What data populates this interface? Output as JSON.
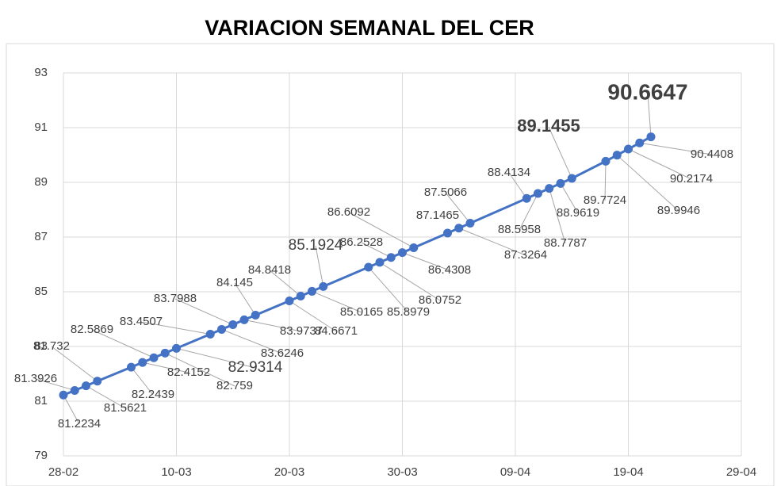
{
  "chart_data": {
    "type": "line",
    "title": "VARIACION SEMANAL DEL CER",
    "x": [
      "28-02",
      "01-03",
      "02-03",
      "03-03",
      "06-03",
      "07-03",
      "08-03",
      "09-03",
      "10-03",
      "13-03",
      "14-03",
      "15-03",
      "16-03",
      "17-03",
      "20-03",
      "21-03",
      "22-03",
      "23-03",
      "27-03",
      "28-03",
      "29-03",
      "30-03",
      "31-03",
      "03-04",
      "04-04",
      "05-04",
      "10-04",
      "11-04",
      "12-04",
      "13-04",
      "14-04",
      "17-04",
      "18-04",
      "19-04",
      "20-04",
      "21-04"
    ],
    "values": [
      81.2234,
      81.3926,
      81.5621,
      81.732,
      82.2439,
      82.4152,
      82.5869,
      82.759,
      82.9314,
      83.4507,
      83.6246,
      83.7988,
      83.9737,
      84.145,
      84.6671,
      84.8418,
      85.0165,
      85.1924,
      85.8979,
      86.0752,
      86.2528,
      86.4308,
      86.6092,
      87.1465,
      87.3264,
      87.5066,
      88.4134,
      88.5958,
      88.7787,
      88.9619,
      89.1455,
      89.7724,
      89.9946,
      90.2174,
      90.4408,
      90.6647
    ],
    "color": "#4472c4",
    "xlim": [
      "28-02",
      "29-04"
    ],
    "xticks": [
      "28-02",
      "10-03",
      "20-03",
      "30-03",
      "09-04",
      "19-04",
      "29-04"
    ],
    "ylim": [
      79,
      93
    ],
    "yticks": [
      79,
      81,
      83,
      85,
      87,
      89,
      91,
      93
    ],
    "grid": true
  }
}
